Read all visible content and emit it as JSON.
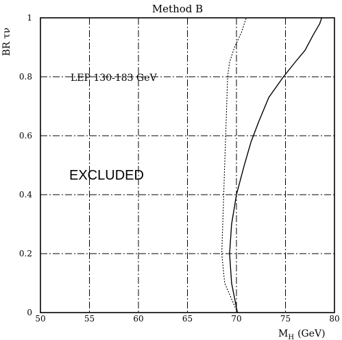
{
  "chart_data": {
    "type": "line",
    "title": "Method B",
    "xlabel_main": "M",
    "xlabel_sub": "H",
    "xlabel_unit": "(GeV)",
    "ylabel": "BR τν",
    "xlim": [
      50,
      80
    ],
    "ylim": [
      0,
      1
    ],
    "xticks": [
      "50",
      "55",
      "60",
      "65",
      "70",
      "75",
      "80"
    ],
    "yticks": [
      "0",
      "0.2",
      "0.4",
      "0.6",
      "0.8",
      "1"
    ],
    "grid": true,
    "annotations": [
      "LEP 130-183 GeV",
      "EXCLUDED"
    ],
    "series": [
      {
        "style": "solid",
        "x": [
          70.1,
          69.5,
          69.3,
          69.5,
          70.0,
          70.8,
          71.5,
          72.3,
          73.3,
          74.8,
          76.0,
          77.0,
          77.8,
          78.5,
          78.7
        ],
        "y": [
          0.0,
          0.1,
          0.2,
          0.3,
          0.4,
          0.5,
          0.58,
          0.65,
          0.73,
          0.8,
          0.85,
          0.89,
          0.94,
          0.98,
          1.0
        ]
      },
      {
        "style": "dotted",
        "x": [
          70.1,
          68.8,
          68.5,
          68.6,
          68.7,
          68.8,
          68.9,
          69.0,
          69.1,
          69.3,
          69.8,
          70.5,
          71.0
        ],
        "y": [
          0.0,
          0.1,
          0.2,
          0.3,
          0.4,
          0.5,
          0.6,
          0.7,
          0.8,
          0.85,
          0.9,
          0.95,
          1.0
        ]
      }
    ]
  }
}
